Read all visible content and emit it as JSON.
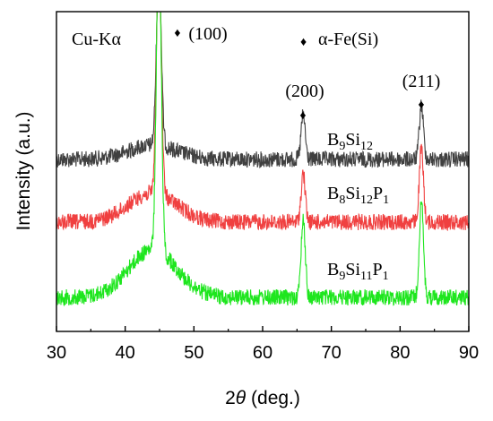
{
  "chart_data": {
    "type": "line",
    "xlabel_prefix": "2",
    "xlabel_symbol": "θ",
    "xlabel_suffix": " (deg.)",
    "ylabel": "Intensity (a.u.)",
    "xlim": [
      30,
      90
    ],
    "x_ticks": [
      "30",
      "40",
      "50",
      "60",
      "70",
      "80",
      "90"
    ],
    "grid": false,
    "source_label": "Cu-Kα",
    "legend": {
      "marker": "♦",
      "label": "α-Fe(Si)",
      "placement": "top-center"
    },
    "peaks": [
      {
        "label": "(100)",
        "x": 44.9
      },
      {
        "label": "(200)",
        "x": 65.9
      },
      {
        "label": "(211)",
        "x": 83.1
      }
    ],
    "series": [
      {
        "label_parts": [
          [
            "B",
            ""
          ],
          [
            "9",
            "sub"
          ],
          [
            "Si",
            ""
          ],
          [
            "12",
            "sub"
          ]
        ],
        "color": "#404040",
        "order": 0,
        "peak_heights": [
          1.0,
          0.25,
          0.3
        ],
        "halo_height": 0.08
      },
      {
        "label_parts": [
          [
            "B",
            ""
          ],
          [
            "8",
            "sub"
          ],
          [
            "Si",
            ""
          ],
          [
            "12",
            "sub"
          ],
          [
            "P",
            ""
          ],
          [
            "1",
            "sub"
          ]
        ],
        "color": "#f04040",
        "order": 1,
        "peak_heights": [
          1.0,
          0.2,
          0.3
        ],
        "halo_height": 0.12
      },
      {
        "label_parts": [
          [
            "B",
            ""
          ],
          [
            "9",
            "sub"
          ],
          [
            "Si",
            ""
          ],
          [
            "11",
            "sub"
          ],
          [
            "P",
            ""
          ],
          [
            "1",
            "sub"
          ]
        ],
        "color": "#1ee61e",
        "order": 2,
        "peak_heights": [
          1.0,
          0.25,
          0.3
        ],
        "halo_height": 0.15
      }
    ]
  }
}
